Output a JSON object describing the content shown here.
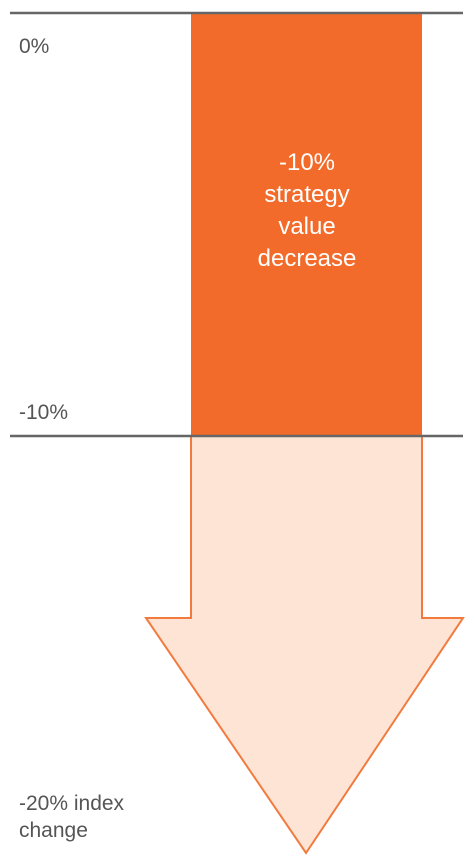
{
  "diagram": {
    "zero_label": "0%",
    "floor_label": "-10%",
    "index_label": "-20% index\nchange",
    "bar_text": "-10%\nstrategy\nvalue\ndecrease"
  },
  "colors": {
    "strategy_bar": "#f26b2a",
    "index_arrow_fill": "#fde4d4",
    "index_arrow_stroke": "#f27a3e",
    "baseline": "#666666",
    "label_text": "#555555"
  }
}
